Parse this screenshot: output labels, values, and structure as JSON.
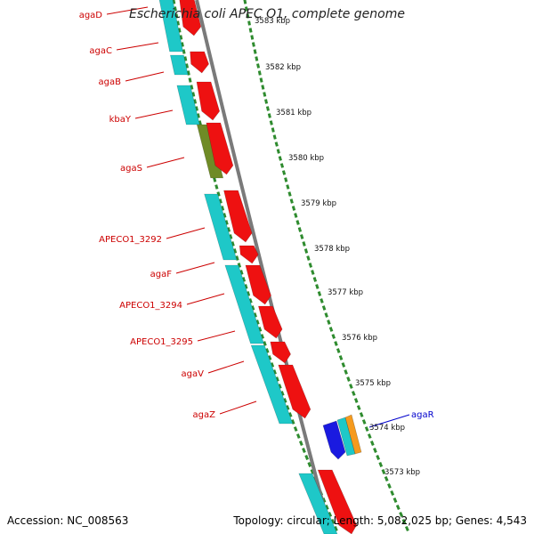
{
  "title": "Escherichia coli APEC O1, complete genome",
  "accession_text": "Accession: NC_008563",
  "stats_text": "Topology: circular; Length: 5,082,025 bp; Genes: 4,543",
  "colors": {
    "cyan": "#1ec8c8",
    "red": "#ee1111",
    "olive": "#6f8b26",
    "blue": "#1a1ae0",
    "orange": "#f59a1e",
    "green_tick": "#2e8b2e",
    "label_red": "#cc0000",
    "label_blue": "#0000cc"
  },
  "scale_labels": [
    {
      "text": "3583 kbp"
    },
    {
      "text": "3582 kbp"
    },
    {
      "text": "3581 kbp"
    },
    {
      "text": "3580 kbp"
    },
    {
      "text": "3579 kbp"
    },
    {
      "text": "3578 kbp"
    },
    {
      "text": "3577 kbp"
    },
    {
      "text": "3576 kbp"
    },
    {
      "text": "3575 kbp"
    },
    {
      "text": "3574 kbp"
    },
    {
      "text": "3573 kbp"
    }
  ],
  "gene_labels": [
    {
      "text": "agaD"
    },
    {
      "text": "agaC"
    },
    {
      "text": "agaB"
    },
    {
      "text": "kbaY"
    },
    {
      "text": "agaS"
    },
    {
      "text": "APECO1_3292"
    },
    {
      "text": "agaF"
    },
    {
      "text": "APECO1_3294"
    },
    {
      "text": "APECO1_3295"
    },
    {
      "text": "agaV"
    },
    {
      "text": "agaZ"
    },
    {
      "text": "agaR"
    }
  ]
}
